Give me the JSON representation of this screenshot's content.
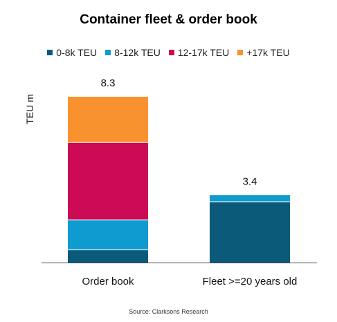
{
  "chart_data": {
    "type": "bar",
    "stacked": true,
    "title": "Container fleet & order book",
    "ylabel": "TEU m",
    "xlabel": "",
    "categories": [
      "Order book",
      "Fleet >=20 years old"
    ],
    "series": [
      {
        "name": "0-8k TEU",
        "color": "#0b5a7a",
        "values": [
          0.65,
          3.05
        ]
      },
      {
        "name": "8-12k TEU",
        "color": "#0f9bcf",
        "values": [
          1.5,
          0.35
        ]
      },
      {
        "name": "12-17k TEU",
        "color": "#cc0a55",
        "values": [
          3.85,
          0
        ]
      },
      {
        "name": "+17k TEU",
        "color": "#f7922f",
        "values": [
          2.3,
          0
        ]
      }
    ],
    "totals": [
      "8.3",
      "3.4"
    ],
    "ylim": [
      0,
      8.3
    ],
    "legend_position": "top",
    "grid": false
  },
  "source": "Source: Clarksons Research"
}
